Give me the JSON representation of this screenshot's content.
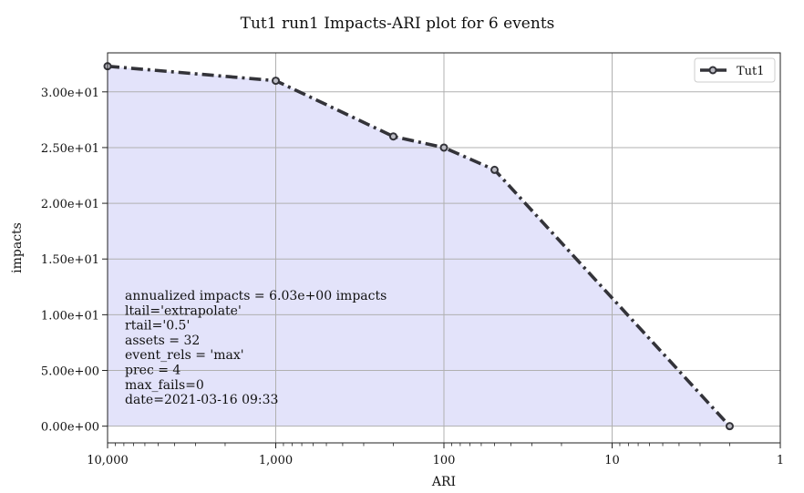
{
  "chart_data": {
    "type": "line",
    "title": "Tut1 run1 Impacts-ARI plot for 6 events",
    "xlabel": "ARI",
    "ylabel": "impacts",
    "x_scale": "log-reversed",
    "xlim": [
      10000,
      1
    ],
    "ylim": [
      -1.5,
      33.5
    ],
    "x_ticks": [
      10000,
      1000,
      100,
      10,
      1
    ],
    "x_tick_labels": [
      "10,000",
      "1,000",
      "100",
      "10",
      "1"
    ],
    "y_ticks": [
      0,
      5,
      10,
      15,
      20,
      25,
      30
    ],
    "y_tick_labels": [
      "0.00e+00",
      "5.00e+00",
      "1.00e+01",
      "1.50e+01",
      "2.00e+01",
      "2.50e+01",
      "3.00e+01"
    ],
    "grid": true,
    "legend_position": "top-right",
    "fill_color": "#e3e3fa",
    "series": [
      {
        "name": "Tut1",
        "color": "#333339",
        "line_style": "dash-dot",
        "x": [
          10000,
          1000,
          200,
          100,
          50,
          2
        ],
        "y": [
          32.3,
          31.0,
          26.0,
          25.0,
          23.0,
          0.0
        ]
      }
    ],
    "annotation_lines": [
      "annualized impacts = 6.03e+00 impacts",
      "ltail='extrapolate'",
      "rtail='0.5'",
      "assets = 32",
      "event_rels = 'max'",
      "prec = 4",
      "max_fails=0",
      "date=2021-03-16 09:33"
    ]
  }
}
